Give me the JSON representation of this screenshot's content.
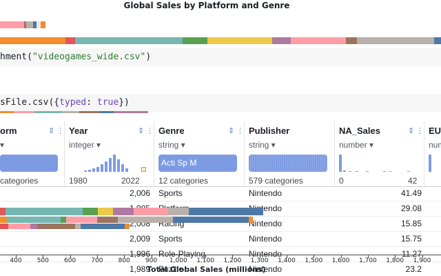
{
  "chart_title": "Global Sales by Platform and Genre",
  "code": {
    "line1_prefix": "hment(",
    "line1_string": "\"videogames_wide.csv\"",
    "line1_suffix": ")",
    "line2_prefix": "sFile.csv({",
    "line2_key": "typed",
    "line2_colon": ": ",
    "line2_value": "true",
    "line2_suffix": "})"
  },
  "table": {
    "columns": [
      {
        "name": "orm",
        "type": "",
        "summary": "categories"
      },
      {
        "name": "Year",
        "type": "integer",
        "summary_min": "1980",
        "summary_max": "2022"
      },
      {
        "name": "Genre",
        "type": "string",
        "summary": "12 categories",
        "chips": "Acti Sp M"
      },
      {
        "name": "Publisher",
        "type": "string",
        "summary": "579 categories"
      },
      {
        "name": "NA_Sales",
        "type": "number",
        "summary_min": "0",
        "summary_max": "42"
      },
      {
        "name": "EU_",
        "type": "num",
        "summary": ""
      }
    ],
    "rows": [
      {
        "year": "2,006",
        "genre": "Sports",
        "publisher": "Nintendo",
        "na_sales": "41.49"
      },
      {
        "year": "1,985",
        "genre": "Platform",
        "publisher": "Nintendo",
        "na_sales": "29.08"
      },
      {
        "year": "2,008",
        "genre": "Racing",
        "publisher": "Nintendo",
        "na_sales": "15.85"
      },
      {
        "year": "2,009",
        "genre": "Sports",
        "publisher": "Nintendo",
        "na_sales": "15.75"
      },
      {
        "year": "1,996",
        "genre": "Role-Playing",
        "publisher": "Nintendo",
        "na_sales": "11.27"
      },
      {
        "year": "1,989",
        "genre": "Puzzle",
        "publisher": "Nintendo",
        "na_sales": "23.2"
      }
    ]
  },
  "axis": {
    "title": "Total Global Sales (millions)",
    "ticks": [
      "400",
      "500",
      "600",
      "700",
      "800",
      "900",
      "1,000",
      "1,100",
      "1,200",
      "1,300",
      "1,400",
      "1,500",
      "1,600",
      "1,700",
      "1,800",
      "1,900"
    ]
  },
  "colors": {
    "orange": "#f28e2c",
    "red": "#e15759",
    "teal": "#76b7b2",
    "green": "#59a14f",
    "yellow": "#edc949",
    "purple": "#af7aa1",
    "pink": "#ff9da7",
    "brown": "#9c755f",
    "gray": "#bab0ab",
    "blue": "#4e79a7"
  }
}
